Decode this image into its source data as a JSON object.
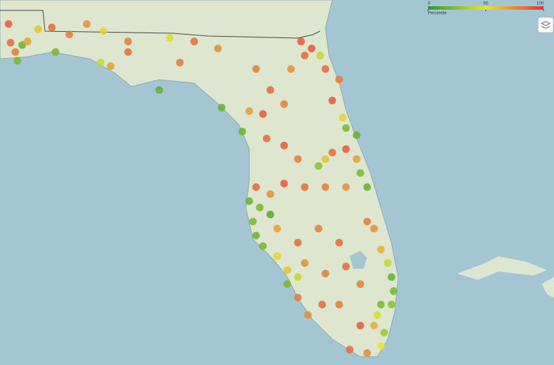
{
  "legend": {
    "title": "Percentile",
    "ticks": [
      0,
      50,
      100
    ],
    "colors": [
      "#2e9a2e",
      "#e6e62a",
      "#e8333a"
    ]
  },
  "points": [
    {
      "lon": -87.3,
      "lat": 30.93,
      "value": 90
    },
    {
      "lon": -87.26,
      "lat": 30.61,
      "value": 85
    },
    {
      "lon": -87.17,
      "lat": 30.45,
      "value": 80
    },
    {
      "lon": -87.13,
      "lat": 30.3,
      "value": 20
    },
    {
      "lon": -87.04,
      "lat": 30.57,
      "value": 15
    },
    {
      "lon": -86.94,
      "lat": 30.63,
      "value": 70
    },
    {
      "lon": -86.74,
      "lat": 30.84,
      "value": 60
    },
    {
      "lon": -86.48,
      "lat": 30.87,
      "value": 85
    },
    {
      "lon": -86.41,
      "lat": 30.45,
      "value": 20
    },
    {
      "lon": -86.15,
      "lat": 30.75,
      "value": 80
    },
    {
      "lon": -85.82,
      "lat": 30.93,
      "value": 75
    },
    {
      "lon": -85.5,
      "lat": 30.81,
      "value": 55
    },
    {
      "lon": -85.56,
      "lat": 30.27,
      "value": 40
    },
    {
      "lon": -85.37,
      "lat": 30.21,
      "value": 70
    },
    {
      "lon": -85.04,
      "lat": 30.45,
      "value": 85
    },
    {
      "lon": -85.04,
      "lat": 30.63,
      "value": 80
    },
    {
      "lon": -84.45,
      "lat": 29.8,
      "value": 15
    },
    {
      "lon": -84.25,
      "lat": 30.69,
      "value": 45
    },
    {
      "lon": -84.06,
      "lat": 30.27,
      "value": 80
    },
    {
      "lon": -83.79,
      "lat": 30.63,
      "value": 85
    },
    {
      "lon": -83.34,
      "lat": 30.51,
      "value": 75
    },
    {
      "lon": -83.27,
      "lat": 29.5,
      "value": 15
    },
    {
      "lon": -82.88,
      "lat": 29.09,
      "value": 15
    },
    {
      "lon": -82.62,
      "lat": 30.16,
      "value": 80
    },
    {
      "lon": -82.35,
      "lat": 29.8,
      "value": 85
    },
    {
      "lon": -82.09,
      "lat": 29.56,
      "value": 80
    },
    {
      "lon": -82.75,
      "lat": 29.44,
      "value": 70
    },
    {
      "lon": -82.49,
      "lat": 29.39,
      "value": 90
    },
    {
      "lon": -81.96,
      "lat": 30.16,
      "value": 75
    },
    {
      "lon": -81.7,
      "lat": 30.39,
      "value": 85
    },
    {
      "lon": -81.57,
      "lat": 30.51,
      "value": 90
    },
    {
      "lon": -81.41,
      "lat": 30.39,
      "value": 40
    },
    {
      "lon": -81.77,
      "lat": 30.63,
      "value": 90
    },
    {
      "lon": -81.31,
      "lat": 30.16,
      "value": 85
    },
    {
      "lon": -81.05,
      "lat": 29.98,
      "value": 80
    },
    {
      "lon": -81.18,
      "lat": 29.62,
      "value": 90
    },
    {
      "lon": -80.98,
      "lat": 29.33,
      "value": 55
    },
    {
      "lon": -80.92,
      "lat": 29.15,
      "value": 20
    },
    {
      "lon": -80.72,
      "lat": 29.03,
      "value": 15
    },
    {
      "lon": -82.42,
      "lat": 28.97,
      "value": 85
    },
    {
      "lon": -82.09,
      "lat": 28.85,
      "value": 90
    },
    {
      "lon": -81.83,
      "lat": 28.62,
      "value": 80
    },
    {
      "lon": -81.44,
      "lat": 28.5,
      "value": 25
    },
    {
      "lon": -81.31,
      "lat": 28.62,
      "value": 60
    },
    {
      "lon": -81.18,
      "lat": 28.73,
      "value": 85
    },
    {
      "lon": -80.92,
      "lat": 28.79,
      "value": 90
    },
    {
      "lon": -80.72,
      "lat": 28.62,
      "value": 70
    },
    {
      "lon": -80.65,
      "lat": 28.38,
      "value": 20
    },
    {
      "lon": -80.52,
      "lat": 28.14,
      "value": 15
    },
    {
      "lon": -82.62,
      "lat": 28.14,
      "value": 85
    },
    {
      "lon": -82.35,
      "lat": 28.02,
      "value": 75
    },
    {
      "lon": -82.09,
      "lat": 28.2,
      "value": 90
    },
    {
      "lon": -81.7,
      "lat": 28.14,
      "value": 85
    },
    {
      "lon": -81.31,
      "lat": 28.14,
      "value": 80
    },
    {
      "lon": -80.92,
      "lat": 28.14,
      "value": 75
    },
    {
      "lon": -82.75,
      "lat": 27.9,
      "value": 15
    },
    {
      "lon": -82.55,
      "lat": 27.79,
      "value": 20
    },
    {
      "lon": -82.35,
      "lat": 27.67,
      "value": 10
    },
    {
      "lon": -82.68,
      "lat": 27.55,
      "value": 20
    },
    {
      "lon": -82.62,
      "lat": 27.31,
      "value": 15
    },
    {
      "lon": -82.49,
      "lat": 27.13,
      "value": 20
    },
    {
      "lon": -82.22,
      "lat": 27.43,
      "value": 70
    },
    {
      "lon": -81.83,
      "lat": 27.19,
      "value": 85
    },
    {
      "lon": -81.44,
      "lat": 27.43,
      "value": 80
    },
    {
      "lon": -81.05,
      "lat": 27.19,
      "value": 85
    },
    {
      "lon": -80.52,
      "lat": 27.55,
      "value": 80
    },
    {
      "lon": -80.39,
      "lat": 27.43,
      "value": 75
    },
    {
      "lon": -80.26,
      "lat": 27.07,
      "value": 65
    },
    {
      "lon": -82.22,
      "lat": 26.96,
      "value": 55
    },
    {
      "lon": -82.03,
      "lat": 26.72,
      "value": 60
    },
    {
      "lon": -81.83,
      "lat": 26.6,
      "value": 40
    },
    {
      "lon": -81.7,
      "lat": 26.84,
      "value": 75
    },
    {
      "lon": -81.31,
      "lat": 26.66,
      "value": 80
    },
    {
      "lon": -80.92,
      "lat": 26.78,
      "value": 85
    },
    {
      "lon": -80.65,
      "lat": 26.48,
      "value": 80
    },
    {
      "lon": -80.13,
      "lat": 26.84,
      "value": 40
    },
    {
      "lon": -80.06,
      "lat": 26.6,
      "value": 15
    },
    {
      "lon": -80.02,
      "lat": 26.36,
      "value": 20
    },
    {
      "lon": -80.06,
      "lat": 26.13,
      "value": 25
    },
    {
      "lon": -80.26,
      "lat": 26.13,
      "value": 20
    },
    {
      "lon": -80.33,
      "lat": 25.95,
      "value": 45
    },
    {
      "lon": -80.39,
      "lat": 25.77,
      "value": 65
    },
    {
      "lon": -80.2,
      "lat": 25.65,
      "value": 30
    },
    {
      "lon": -80.26,
      "lat": 25.42,
      "value": 50
    },
    {
      "lon": -81.83,
      "lat": 26.25,
      "value": 80
    },
    {
      "lon": -81.64,
      "lat": 25.95,
      "value": 75
    },
    {
      "lon": -81.37,
      "lat": 26.13,
      "value": 85
    },
    {
      "lon": -81.05,
      "lat": 26.13,
      "value": 80
    },
    {
      "lon": -80.65,
      "lat": 25.77,
      "value": 90
    },
    {
      "lon": -80.85,
      "lat": 25.36,
      "value": 85
    },
    {
      "lon": -80.52,
      "lat": 25.3,
      "value": 75
    },
    {
      "lon": -82.03,
      "lat": 26.48,
      "value": 20
    }
  ]
}
